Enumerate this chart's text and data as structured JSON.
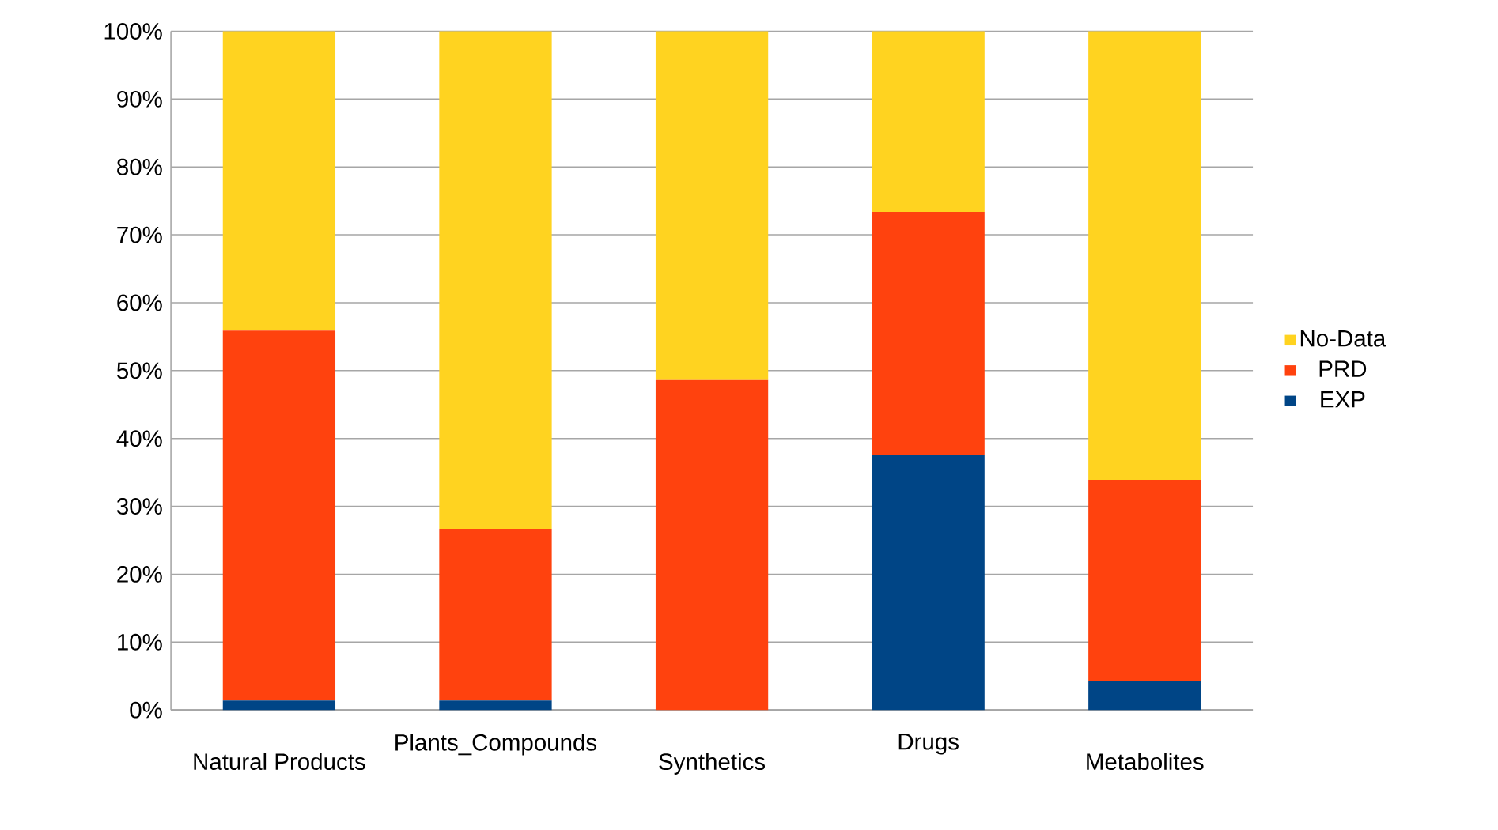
{
  "chart_data": {
    "type": "bar",
    "stacked": true,
    "categories": [
      "Natural  Products",
      "Plants_Compounds",
      "Synthetics",
      "Drugs",
      "Metabolites"
    ],
    "series": [
      {
        "name": "EXP",
        "color": "#004586",
        "values": [
          1.4,
          1.4,
          0,
          37.6,
          4.2
        ]
      },
      {
        "name": "PRD",
        "color": "#ff420e",
        "values": [
          54.5,
          25.3,
          48.6,
          35.8,
          29.7
        ]
      },
      {
        "name": "No-Data",
        "color": "#ffd320",
        "values": [
          44.1,
          73.3,
          51.4,
          26.6,
          66.1
        ]
      }
    ],
    "ylim": [
      0,
      100
    ],
    "yticks": [
      {
        "value": 0,
        "label": "0%"
      },
      {
        "value": 10,
        "label": "10%"
      },
      {
        "value": 20,
        "label": "20%"
      },
      {
        "value": 30,
        "label": "30%"
      },
      {
        "value": 40,
        "label": "40%"
      },
      {
        "value": 50,
        "label": "50%"
      },
      {
        "value": 60,
        "label": "60%"
      },
      {
        "value": 70,
        "label": "70%"
      },
      {
        "value": 80,
        "label": "80%"
      },
      {
        "value": 90,
        "label": "90%"
      },
      {
        "value": 100,
        "label": "100%"
      }
    ],
    "grid": "y",
    "legend": "right"
  }
}
